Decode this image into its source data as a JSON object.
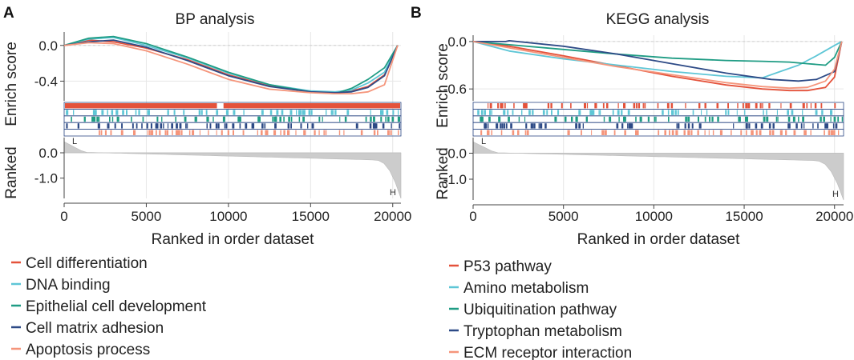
{
  "chart_data": [
    {
      "type": "line",
      "panel_label": "A",
      "title": "BP analysis",
      "xlabel": "Ranked in order dataset",
      "ylabel_top": "Enrich score",
      "ylabel_bottom": "Ranked",
      "xlim": [
        0,
        20500
      ],
      "x_ticks": [
        0,
        5000,
        10000,
        15000,
        20000
      ],
      "x_tick_labels": [
        "0",
        "5000",
        "10000",
        "15000",
        "20000"
      ],
      "es_ylim": [
        -0.62,
        0.15
      ],
      "es_ticks": [
        0.0,
        -0.4
      ],
      "es_tick_labels": [
        "0.0",
        "-0.4"
      ],
      "rank_ylim": [
        -1.8,
        0.6
      ],
      "rank_ticks": [
        0.0,
        -1.0
      ],
      "rank_tick_labels": [
        "0.0",
        "-1.0"
      ],
      "rank_label_low": "L",
      "rank_label_high": "H",
      "series": [
        {
          "name": "Cell differentiation",
          "color": "#e4523b",
          "x": [
            0,
            1500,
            3000,
            5000,
            7500,
            10000,
            12500,
            15000,
            16500,
            17500,
            18500,
            19500,
            20300
          ],
          "values": [
            0.0,
            0.06,
            0.04,
            -0.03,
            -0.16,
            -0.33,
            -0.45,
            -0.52,
            -0.53,
            -0.51,
            -0.46,
            -0.33,
            0.0
          ]
        },
        {
          "name": "DNA binding",
          "color": "#5ec6d6",
          "x": [
            0,
            1500,
            3000,
            5000,
            7500,
            10000,
            12500,
            15000,
            16500,
            17500,
            18500,
            19500,
            20300
          ],
          "values": [
            0.0,
            0.07,
            0.09,
            0.0,
            -0.14,
            -0.31,
            -0.44,
            -0.51,
            -0.52,
            -0.5,
            -0.42,
            -0.3,
            0.0
          ]
        },
        {
          "name": "Epithelial cell development",
          "color": "#1f9c84",
          "x": [
            0,
            1500,
            3000,
            5000,
            7500,
            10000,
            12500,
            15000,
            16500,
            17500,
            18500,
            19500,
            20300
          ],
          "values": [
            0.0,
            0.08,
            0.1,
            0.02,
            -0.13,
            -0.3,
            -0.44,
            -0.52,
            -0.54,
            -0.48,
            -0.38,
            -0.25,
            0.0
          ]
        },
        {
          "name": "Cell matrix adhesion",
          "color": "#2d4a86",
          "x": [
            0,
            1500,
            3000,
            5000,
            7500,
            10000,
            12500,
            15000,
            16500,
            17500,
            18500,
            19500,
            20300
          ],
          "values": [
            0.0,
            0.04,
            0.06,
            -0.02,
            -0.17,
            -0.34,
            -0.46,
            -0.52,
            -0.53,
            -0.52,
            -0.47,
            -0.34,
            0.0
          ]
        },
        {
          "name": "Apoptosis process",
          "color": "#f5957b",
          "x": [
            0,
            1500,
            3000,
            5000,
            7500,
            10000,
            12500,
            15000,
            16500,
            17500,
            18500,
            19500,
            20300
          ],
          "values": [
            0.0,
            0.03,
            0.02,
            -0.06,
            -0.21,
            -0.38,
            -0.49,
            -0.53,
            -0.54,
            -0.54,
            -0.52,
            -0.44,
            0.0
          ]
        }
      ]
    },
    {
      "type": "line",
      "panel_label": "B",
      "title": "KEGG analysis",
      "xlabel": "Ranked in order dataset",
      "ylabel_top": "Enrich score",
      "ylabel_bottom": "Ranked",
      "xlim": [
        0,
        20500
      ],
      "x_ticks": [
        0,
        5000,
        10000,
        15000,
        20000
      ],
      "x_tick_labels": [
        "0",
        "5000",
        "10000",
        "15000",
        "20000"
      ],
      "es_ylim": [
        -0.75,
        0.08
      ],
      "es_ticks": [
        0.0,
        -0.6
      ],
      "es_tick_labels": [
        "0.0",
        "-0.6"
      ],
      "rank_ylim": [
        -1.8,
        0.6
      ],
      "rank_ticks": [
        0.0,
        -1.0
      ],
      "rank_tick_labels": [
        "0.0",
        "-1.0"
      ],
      "rank_label_low": "L",
      "rank_label_high": "H",
      "series": [
        {
          "name": "P53 pathway",
          "color": "#e4523b",
          "x": [
            0,
            2000,
            5000,
            8000,
            11000,
            14000,
            16000,
            17500,
            18500,
            19500,
            20000,
            20400
          ],
          "values": [
            0.0,
            -0.06,
            -0.18,
            -0.31,
            -0.44,
            -0.55,
            -0.6,
            -0.62,
            -0.62,
            -0.58,
            -0.45,
            0.0
          ]
        },
        {
          "name": "Amino metabolism",
          "color": "#5ec6d6",
          "x": [
            0,
            2000,
            5000,
            8000,
            11000,
            14000,
            16000,
            17000,
            18000,
            19000,
            20000,
            20400
          ],
          "values": [
            0.0,
            -0.12,
            -0.22,
            -0.3,
            -0.38,
            -0.44,
            -0.46,
            -0.38,
            -0.3,
            -0.18,
            -0.05,
            0.0
          ]
        },
        {
          "name": "Ubiquitination pathway",
          "color": "#1f9c84",
          "x": [
            0,
            2000,
            5000,
            8000,
            11000,
            14000,
            16000,
            17500,
            18500,
            19500,
            20000,
            20400
          ],
          "values": [
            0.0,
            -0.04,
            -0.1,
            -0.16,
            -0.21,
            -0.24,
            -0.25,
            -0.26,
            -0.28,
            -0.3,
            -0.2,
            0.0
          ]
        },
        {
          "name": "Tryptophan metabolism",
          "color": "#2d4a86",
          "x": [
            0,
            1800,
            2000,
            5000,
            8000,
            11000,
            14000,
            16500,
            18000,
            19000,
            20000,
            20400
          ],
          "values": [
            0.0,
            0.0,
            0.01,
            -0.06,
            -0.16,
            -0.28,
            -0.4,
            -0.48,
            -0.5,
            -0.48,
            -0.38,
            0.0
          ]
        },
        {
          "name": "ECM receptor interaction",
          "color": "#f5957b",
          "x": [
            0,
            2000,
            5000,
            8000,
            11000,
            14000,
            16000,
            17500,
            18500,
            19500,
            20000,
            20400
          ],
          "values": [
            0.0,
            -0.08,
            -0.2,
            -0.32,
            -0.42,
            -0.52,
            -0.57,
            -0.59,
            -0.58,
            -0.5,
            -0.35,
            0.0
          ]
        }
      ]
    }
  ],
  "legend": {
    "colors": [
      "#e4523b",
      "#5ec6d6",
      "#1f9c84",
      "#2d4a86",
      "#f5957b"
    ]
  },
  "grid": true
}
